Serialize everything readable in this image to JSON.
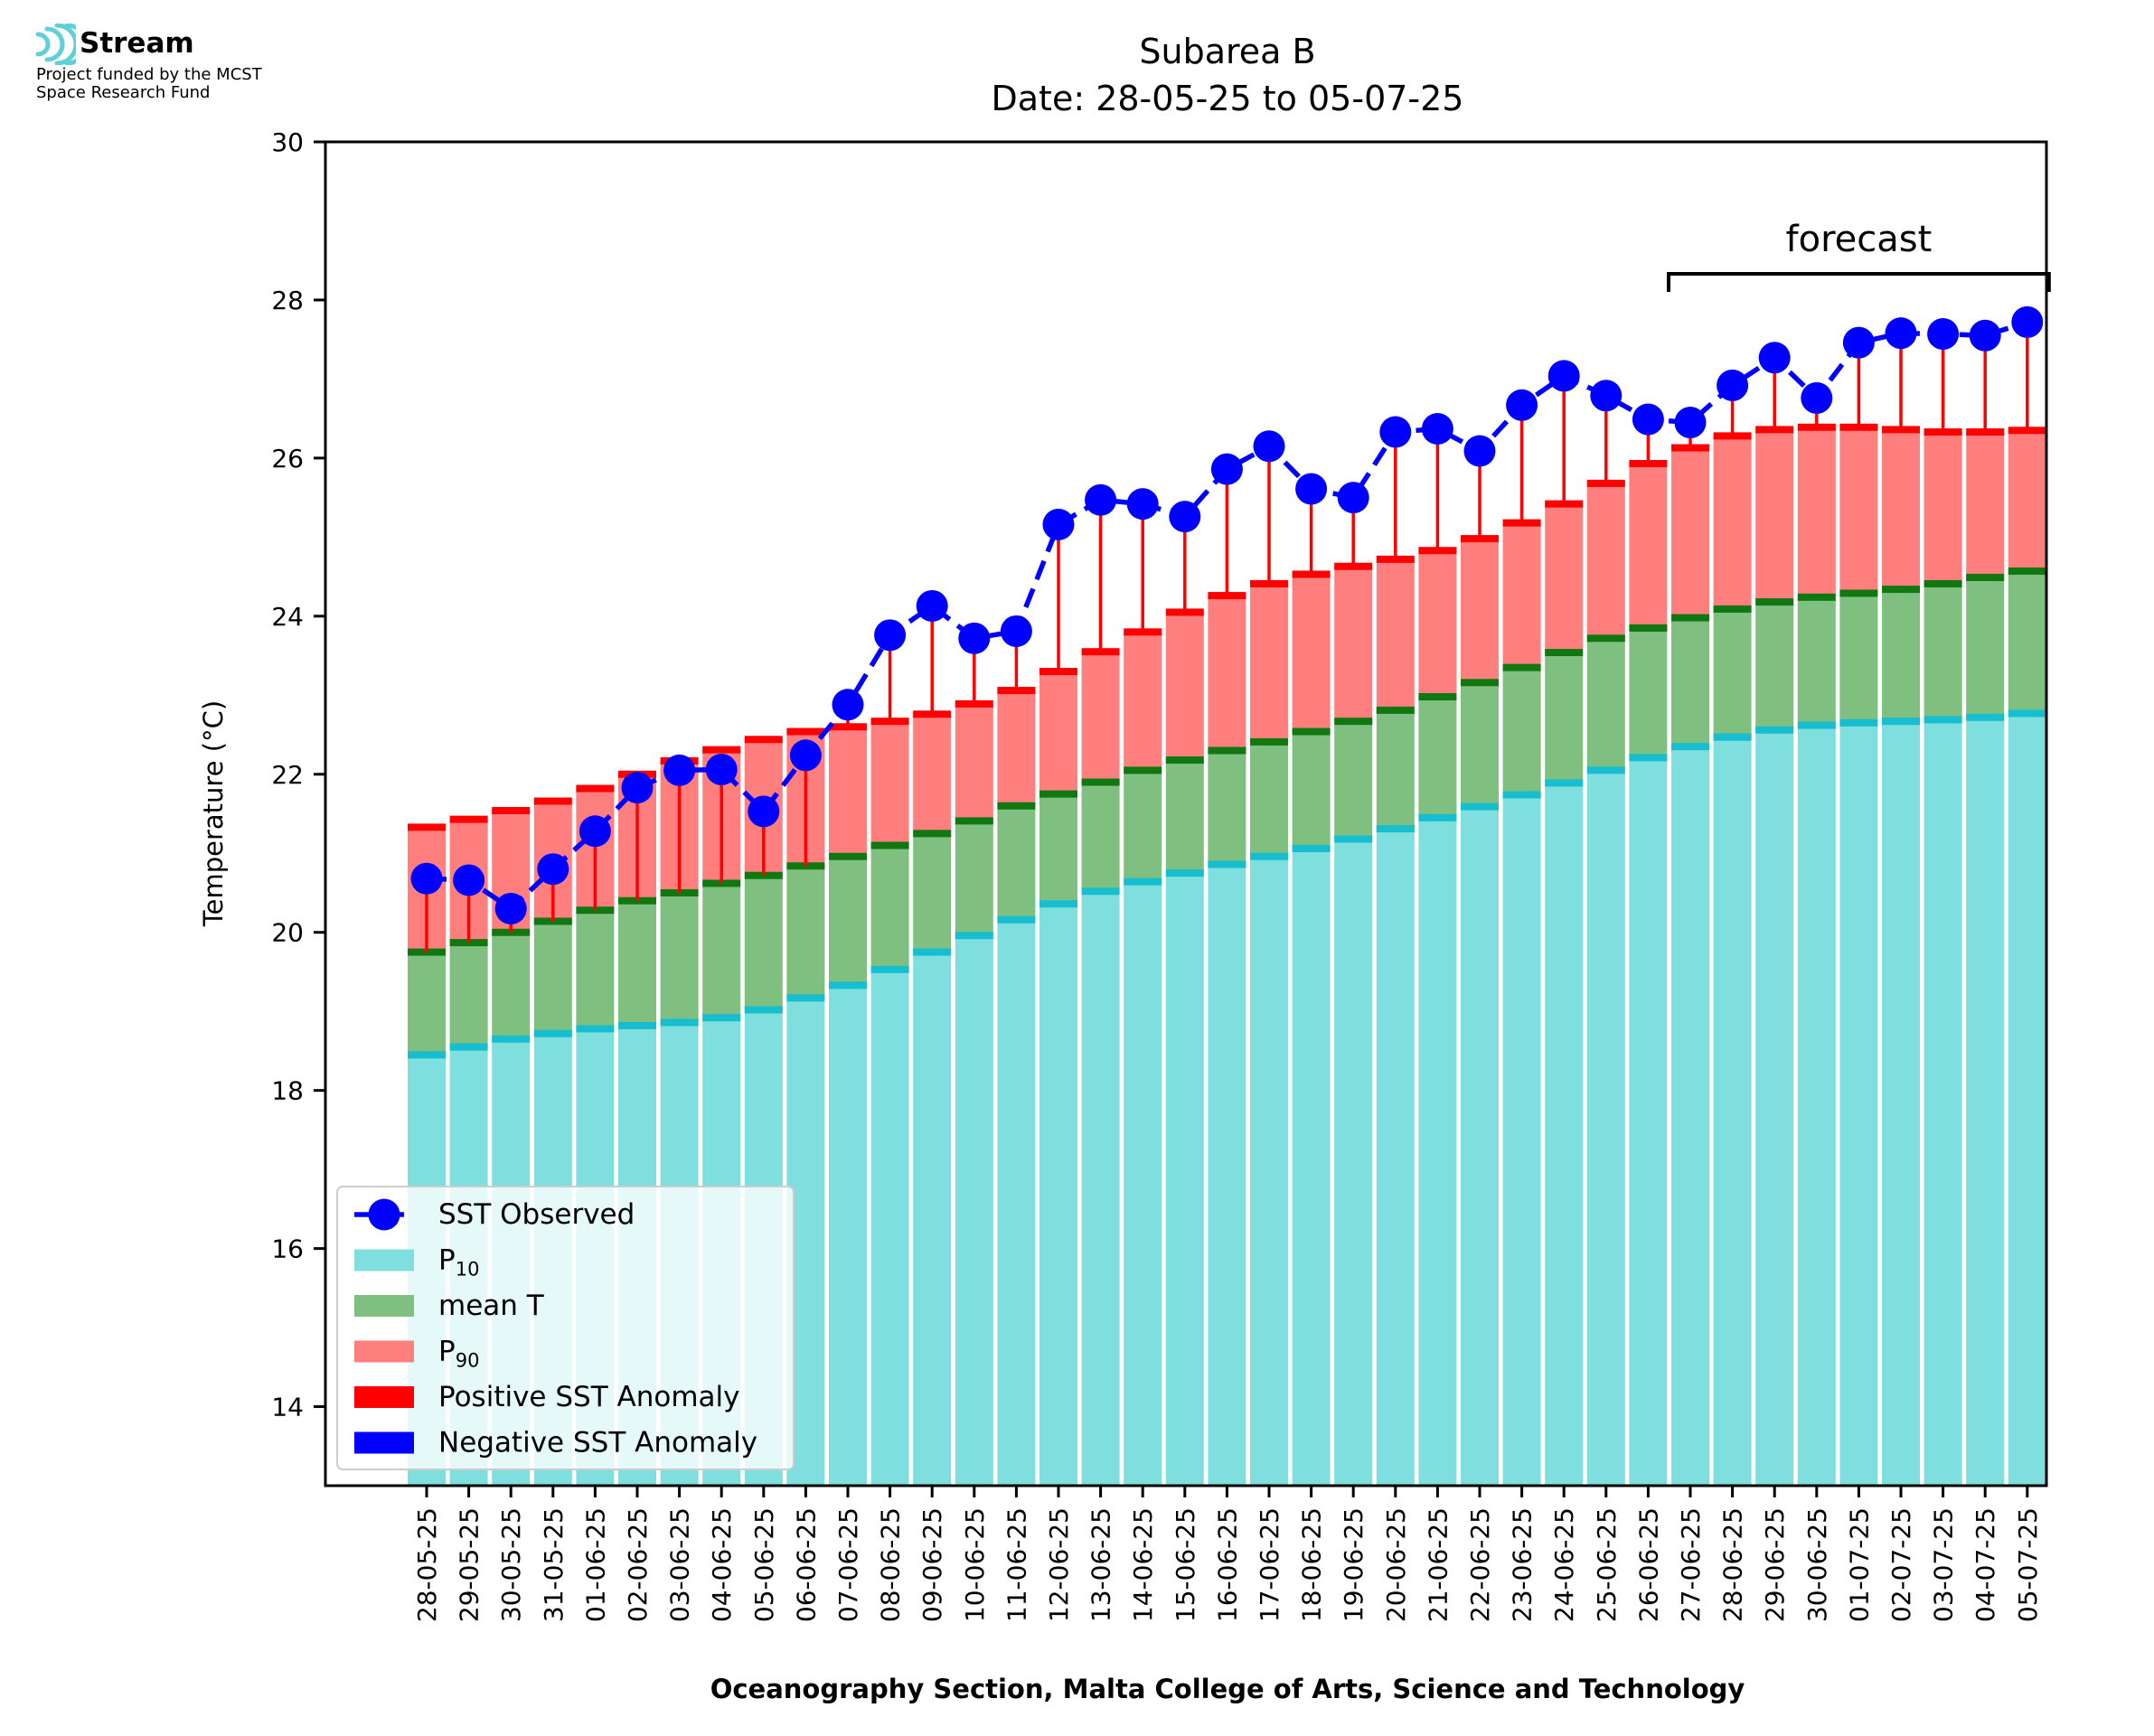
{
  "logo": {
    "name": "Stream",
    "line1": "Project funded by the MCST",
    "line2": "Space Research Fund",
    "icon": "stream-waves-icon",
    "color": "#5fd0d6"
  },
  "colors": {
    "p10": "#7fdede",
    "p10_cap": "#17becf",
    "mean": "#7fbf7f",
    "mean_cap": "#117711",
    "p90": "#ff7f7f",
    "p90_cap": "#ff0000",
    "sst": "#0000ff",
    "anomaly_pos": "#ff0000",
    "anomaly_neg": "#0000ff"
  },
  "chart_data": {
    "type": "bar",
    "title": "Subarea B",
    "subtitle": "Date: 28-05-25 to 05-07-25",
    "xlabel": "Oceanography Section, Malta College of Arts, Science and Technology",
    "ylabel": "Temperature (°C)",
    "ylim": [
      13,
      30
    ],
    "yticks": [
      14,
      16,
      18,
      20,
      22,
      24,
      26,
      28,
      30
    ],
    "categories": [
      "28-05-25",
      "29-05-25",
      "30-05-25",
      "31-05-25",
      "01-06-25",
      "02-06-25",
      "03-06-25",
      "04-06-25",
      "05-06-25",
      "06-06-25",
      "07-06-25",
      "08-06-25",
      "09-06-25",
      "10-06-25",
      "11-06-25",
      "12-06-25",
      "13-06-25",
      "14-06-25",
      "15-06-25",
      "16-06-25",
      "17-06-25",
      "18-06-25",
      "19-06-25",
      "20-06-25",
      "21-06-25",
      "22-06-25",
      "23-06-25",
      "24-06-25",
      "25-06-25",
      "26-06-25",
      "27-06-25",
      "28-06-25",
      "29-06-25",
      "30-06-25",
      "01-07-25",
      "02-07-25",
      "03-07-25",
      "04-07-25",
      "05-07-25"
    ],
    "series": [
      {
        "name": "P10",
        "label_main": "P",
        "label_sub": "10",
        "values": [
          18.45,
          18.55,
          18.65,
          18.72,
          18.78,
          18.82,
          18.86,
          18.92,
          19.02,
          19.17,
          19.33,
          19.53,
          19.75,
          19.96,
          20.16,
          20.36,
          20.52,
          20.64,
          20.75,
          20.86,
          20.96,
          21.06,
          21.18,
          21.31,
          21.45,
          21.59,
          21.74,
          21.89,
          22.05,
          22.21,
          22.35,
          22.47,
          22.56,
          22.62,
          22.65,
          22.67,
          22.69,
          22.72,
          22.77
        ]
      },
      {
        "name": "mean T",
        "values": [
          19.75,
          19.87,
          20.0,
          20.14,
          20.28,
          20.4,
          20.5,
          20.62,
          20.72,
          20.84,
          20.96,
          21.1,
          21.25,
          21.41,
          21.6,
          21.75,
          21.9,
          22.05,
          22.18,
          22.3,
          22.41,
          22.54,
          22.67,
          22.81,
          22.98,
          23.16,
          23.35,
          23.54,
          23.72,
          23.85,
          23.98,
          24.09,
          24.18,
          24.24,
          24.29,
          24.34,
          24.41,
          24.49,
          24.57
        ]
      },
      {
        "name": "P90",
        "label_main": "P",
        "label_sub": "90",
        "values": [
          21.33,
          21.43,
          21.54,
          21.66,
          21.82,
          22.0,
          22.17,
          22.31,
          22.44,
          22.54,
          22.6,
          22.67,
          22.76,
          22.89,
          23.06,
          23.3,
          23.55,
          23.8,
          24.05,
          24.26,
          24.41,
          24.53,
          24.63,
          24.72,
          24.83,
          24.98,
          25.18,
          25.42,
          25.68,
          25.93,
          26.13,
          26.28,
          26.36,
          26.39,
          26.39,
          26.36,
          26.33,
          26.33,
          26.35
        ]
      },
      {
        "name": "SST Observed",
        "values": [
          20.68,
          20.66,
          20.3,
          20.8,
          21.28,
          21.83,
          22.05,
          22.06,
          21.53,
          22.24,
          22.88,
          23.76,
          24.13,
          23.72,
          23.81,
          25.16,
          25.47,
          25.42,
          25.26,
          25.86,
          26.15,
          25.61,
          25.5,
          26.33,
          26.37,
          26.09,
          26.67,
          27.04,
          26.79,
          26.49,
          26.45,
          26.92,
          27.27,
          26.76,
          27.46,
          27.58,
          27.57,
          27.55,
          27.72
        ]
      }
    ],
    "legend": {
      "position": "lower-left",
      "entries": [
        "SST Observed",
        "P10",
        "mean T",
        "P90",
        "Positive SST Anomaly",
        "Negative SST Anomaly"
      ]
    },
    "annotation": {
      "text": "forecast",
      "from": "27-06-25",
      "to": "05-07-25"
    },
    "grid": false
  }
}
